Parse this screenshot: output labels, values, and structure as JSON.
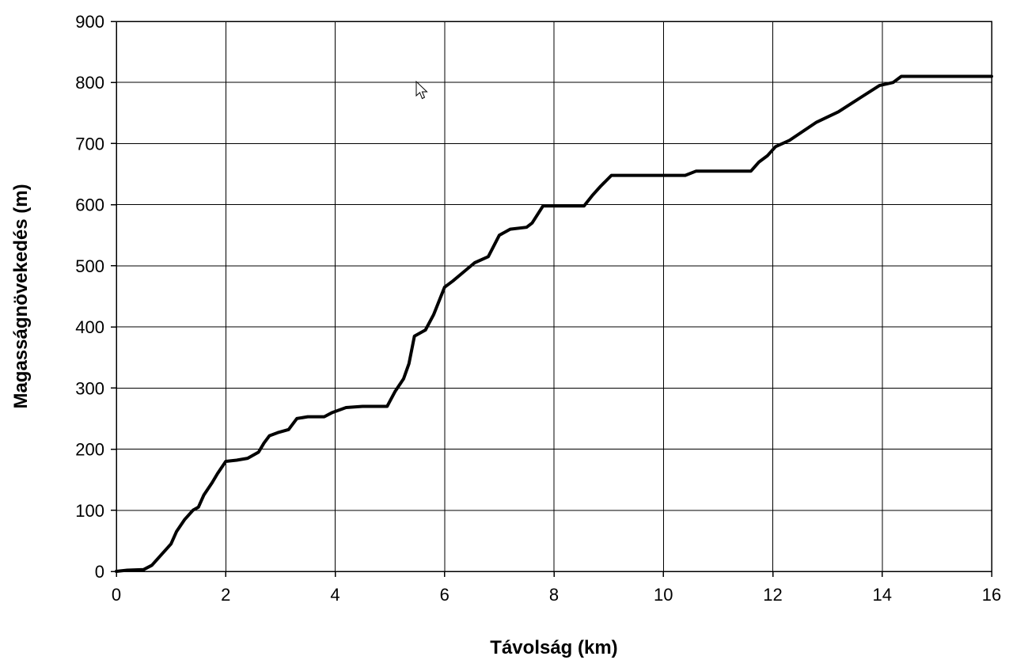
{
  "chart_data": {
    "type": "line",
    "xlabel": "Távolság (km)",
    "ylabel": "Magasságnövekedés (m)",
    "xlim": [
      0,
      16
    ],
    "ylim": [
      0,
      900
    ],
    "xticks": [
      0,
      2,
      4,
      6,
      8,
      10,
      12,
      14,
      16
    ],
    "yticks": [
      0,
      100,
      200,
      300,
      400,
      500,
      600,
      700,
      800,
      900
    ],
    "x_tick_labels": [
      "0",
      "2",
      "4",
      "6",
      "8",
      "10",
      "12",
      "14",
      "16"
    ],
    "y_tick_labels": [
      "0",
      "100",
      "200",
      "300",
      "400",
      "500",
      "600",
      "700",
      "800",
      "900"
    ],
    "grid": true,
    "line_color": "#000000",
    "series": [
      {
        "values_xy": [
          [
            0.0,
            0
          ],
          [
            0.2,
            2
          ],
          [
            0.5,
            3
          ],
          [
            0.65,
            10
          ],
          [
            0.8,
            25
          ],
          [
            1.0,
            45
          ],
          [
            1.1,
            65
          ],
          [
            1.25,
            85
          ],
          [
            1.4,
            100
          ],
          [
            1.5,
            105
          ],
          [
            1.6,
            125
          ],
          [
            1.75,
            145
          ],
          [
            1.85,
            160
          ],
          [
            2.0,
            180
          ],
          [
            2.2,
            182
          ],
          [
            2.4,
            185
          ],
          [
            2.6,
            195
          ],
          [
            2.7,
            210
          ],
          [
            2.8,
            222
          ],
          [
            2.95,
            227
          ],
          [
            3.15,
            232
          ],
          [
            3.3,
            250
          ],
          [
            3.5,
            253
          ],
          [
            3.8,
            253
          ],
          [
            3.95,
            260
          ],
          [
            4.2,
            268
          ],
          [
            4.5,
            270
          ],
          [
            4.95,
            270
          ],
          [
            5.1,
            295
          ],
          [
            5.25,
            315
          ],
          [
            5.35,
            340
          ],
          [
            5.45,
            385
          ],
          [
            5.65,
            395
          ],
          [
            5.8,
            420
          ],
          [
            6.0,
            465
          ],
          [
            6.15,
            475
          ],
          [
            6.35,
            490
          ],
          [
            6.55,
            505
          ],
          [
            6.8,
            515
          ],
          [
            7.0,
            550
          ],
          [
            7.2,
            560
          ],
          [
            7.5,
            563
          ],
          [
            7.6,
            570
          ],
          [
            7.8,
            598
          ],
          [
            8.05,
            598
          ],
          [
            8.55,
            598
          ],
          [
            8.7,
            615
          ],
          [
            8.85,
            630
          ],
          [
            9.05,
            648
          ],
          [
            9.5,
            648
          ],
          [
            10.4,
            648
          ],
          [
            10.6,
            655
          ],
          [
            11.15,
            655
          ],
          [
            11.6,
            655
          ],
          [
            11.75,
            670
          ],
          [
            11.9,
            680
          ],
          [
            12.05,
            695
          ],
          [
            12.3,
            705
          ],
          [
            12.55,
            720
          ],
          [
            12.8,
            735
          ],
          [
            13.2,
            752
          ],
          [
            13.6,
            775
          ],
          [
            13.95,
            795
          ],
          [
            14.2,
            800
          ],
          [
            14.35,
            810
          ],
          [
            16.0,
            810
          ]
        ]
      }
    ]
  }
}
